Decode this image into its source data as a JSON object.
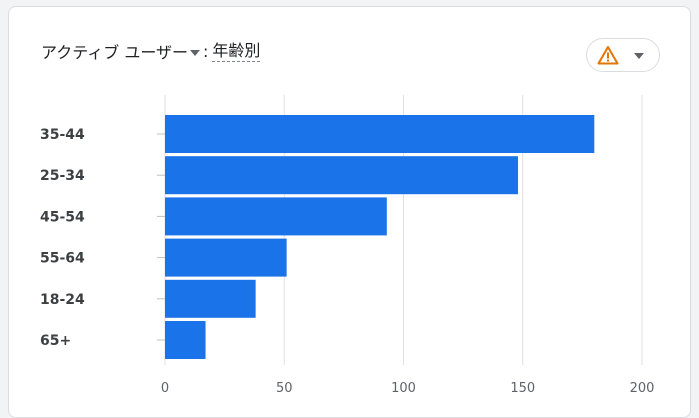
{
  "header": {
    "metric_label": "アクティブ ユーザー",
    "colon": ":",
    "dimension_label": "年齢別"
  },
  "controls": {
    "warning_icon": "warning-triangle-icon",
    "dropdown_icon": "caret-down-icon",
    "warning_color": "#e37400"
  },
  "chart_data": {
    "type": "bar",
    "orientation": "horizontal",
    "categories": [
      "35-44",
      "25-34",
      "45-54",
      "55-64",
      "18-24",
      "65+"
    ],
    "values": [
      180,
      148,
      93,
      51,
      38,
      17
    ],
    "xlim": [
      0,
      200
    ],
    "x_ticks": [
      "0",
      "50",
      "100",
      "150",
      "200"
    ],
    "grid": true,
    "bar_color": "#1a73e8"
  }
}
